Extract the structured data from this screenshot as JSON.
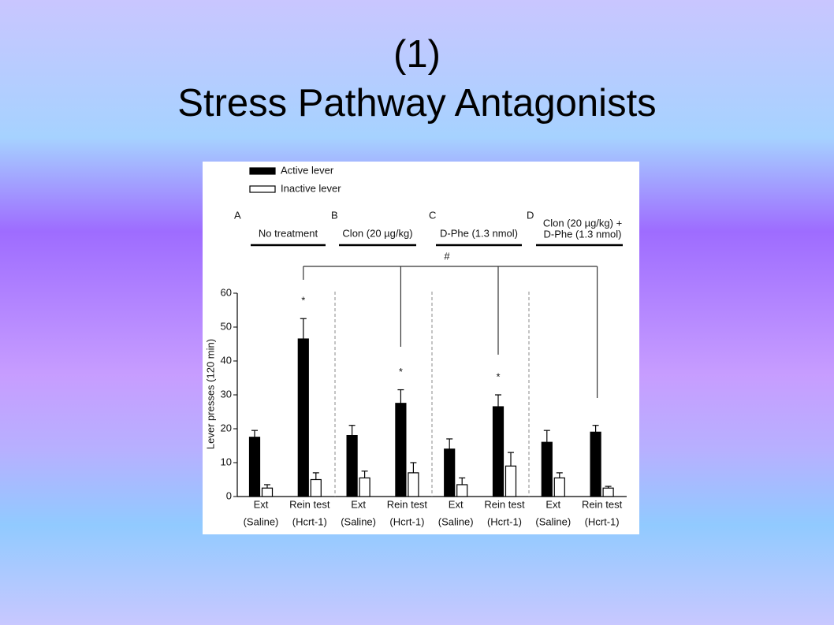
{
  "slide": {
    "number": "(1)",
    "title": "Stress Pathway Antagonists"
  },
  "chart_data": {
    "type": "bar",
    "ylabel": "Lever presses (120 min)",
    "ylim": [
      0,
      60
    ],
    "yticks": [
      0,
      10,
      20,
      30,
      40,
      50,
      60
    ],
    "categories": [
      [
        "Ext",
        "(Saline)"
      ],
      [
        "Rein test",
        "(Hcrt-1)"
      ],
      [
        "Ext",
        "(Saline)"
      ],
      [
        "Rein test",
        "(Hcrt-1)"
      ],
      [
        "Ext",
        "(Saline)"
      ],
      [
        "Rein test",
        "(Hcrt-1)"
      ],
      [
        "Ext",
        "(Saline)"
      ],
      [
        "Rein test",
        "(Hcrt-1)"
      ]
    ],
    "panels": [
      {
        "letter": "A",
        "label": [
          "No treatment"
        ]
      },
      {
        "letter": "B",
        "label": [
          "Clon (20 µg/kg)"
        ]
      },
      {
        "letter": "C",
        "label": [
          "D-Phe (1.3 nmol)"
        ]
      },
      {
        "letter": "D",
        "label": [
          "Clon (20 µg/kg) +",
          "D-Phe (1.3 nmol)"
        ]
      }
    ],
    "series": [
      {
        "name": "Active lever",
        "color": "#000000",
        "values": [
          17.5,
          46.5,
          18,
          27.5,
          14,
          26.5,
          16,
          19
        ],
        "errors": [
          2,
          6,
          3,
          4,
          3,
          3.5,
          3.5,
          2
        ]
      },
      {
        "name": "Inactive lever",
        "color": "#ffffff",
        "values": [
          2.5,
          5,
          5.5,
          7,
          3.5,
          9,
          5.5,
          2.5
        ],
        "errors": [
          1,
          2,
          2,
          3,
          2,
          4,
          1.5,
          0.5
        ]
      }
    ],
    "annotations": [
      "*",
      "*",
      "*",
      "#"
    ]
  }
}
